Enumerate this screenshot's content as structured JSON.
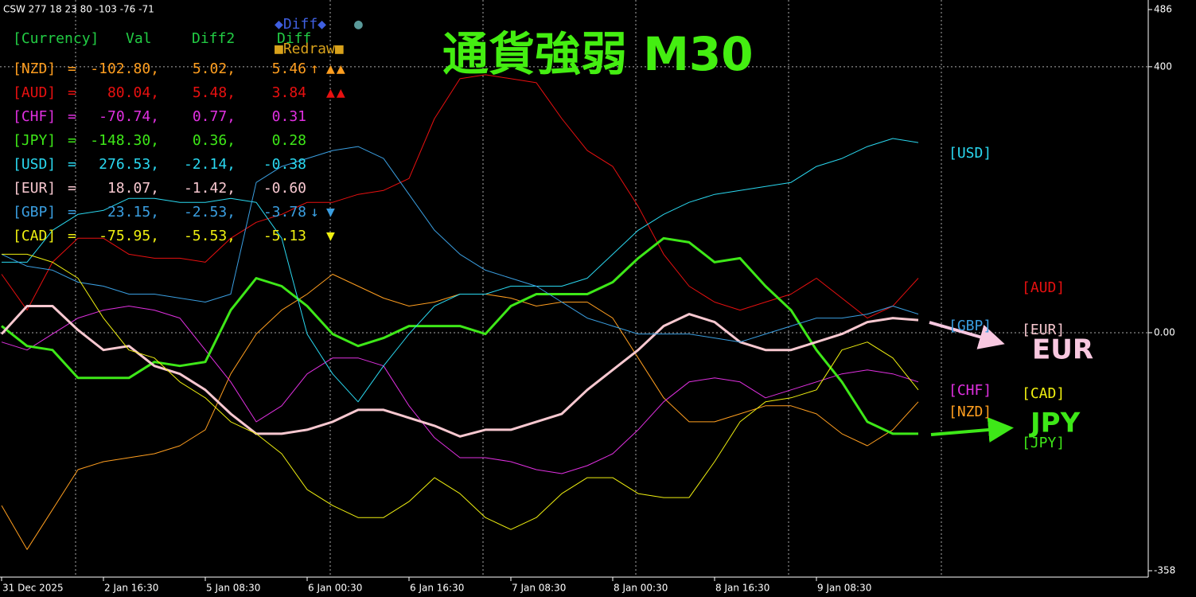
{
  "chart_data": {
    "type": "line",
    "title": "通貨強弱 M30",
    "info": "CSW 277 18 23 80 -103 -76 -71",
    "categories": [
      "31 Dec 2025",
      null,
      null,
      null,
      "2 Jan 16:30",
      null,
      null,
      null,
      "5 Jan 08:30",
      null,
      null,
      null,
      "6 Jan 00:30",
      null,
      null,
      null,
      "6 Jan 16:30",
      null,
      null,
      null,
      "7 Jan 08:30",
      null,
      null,
      null,
      "8 Jan 00:30",
      null,
      null,
      null,
      "8 Jan 16:30",
      null,
      null,
      null,
      "9 Jan 08:30",
      null,
      null,
      null,
      null
    ],
    "ylim": [
      -358,
      486
    ],
    "yticks": [
      486,
      400,
      {
        "value": 0,
        "label": "0.00"
      },
      -358
    ],
    "grid": true,
    "series": [
      {
        "name": "[NZD]",
        "color": "#ff9e1f",
        "linewidth": 1,
        "values": [
          -260,
          -326,
          -266,
          -206,
          -194,
          -188,
          -182,
          -170,
          -146,
          -62,
          -2,
          34,
          58,
          88,
          70,
          52,
          40,
          46,
          58,
          58,
          52,
          40,
          46,
          46,
          22,
          -38,
          -98,
          -134,
          -134,
          -122,
          -110,
          -110,
          -122,
          -152,
          -170,
          -146,
          -104
        ]
      },
      {
        "name": "[AUD]",
        "color": "#e81010",
        "linewidth": 1,
        "values": [
          88,
          34,
          106,
          142,
          142,
          118,
          112,
          112,
          106,
          142,
          166,
          178,
          196,
          196,
          208,
          214,
          232,
          322,
          382,
          388,
          382,
          376,
          322,
          274,
          250,
          190,
          118,
          70,
          46,
          34,
          46,
          58,
          82,
          52,
          22,
          40,
          82
        ]
      },
      {
        "name": "[CHF]",
        "color": "#e030e0",
        "linewidth": 1,
        "values": [
          -14,
          -26,
          -2,
          22,
          34,
          40,
          34,
          22,
          -26,
          -74,
          -134,
          -110,
          -62,
          -38,
          -38,
          -50,
          -110,
          -158,
          -188,
          -188,
          -194,
          -206,
          -212,
          -200,
          -182,
          -146,
          -104,
          -74,
          -68,
          -74,
          -98,
          -86,
          -74,
          -62,
          -56,
          -62,
          -74
        ]
      },
      {
        "name": "[JPY]",
        "color": "#3ee818",
        "linewidth": 3,
        "values": [
          10,
          -20,
          -26,
          -68,
          -68,
          -68,
          -44,
          -50,
          -44,
          34,
          82,
          70,
          40,
          -2,
          -20,
          -8,
          10,
          10,
          10,
          -2,
          40,
          58,
          58,
          58,
          76,
          112,
          142,
          136,
          106,
          112,
          70,
          34,
          -26,
          -74,
          -134,
          -152,
          -152
        ]
      },
      {
        "name": "[USD]",
        "color": "#2ad8f0",
        "linewidth": 1,
        "values": [
          106,
          106,
          154,
          178,
          184,
          202,
          202,
          196,
          196,
          202,
          196,
          142,
          -2,
          -62,
          -104,
          -50,
          -2,
          40,
          58,
          58,
          70,
          70,
          70,
          82,
          118,
          154,
          178,
          196,
          208,
          214,
          220,
          226,
          250,
          262,
          280,
          292,
          286
        ]
      },
      {
        "name": "[EUR]",
        "color": "#f8c8d0",
        "linewidth": 3,
        "values": [
          -2,
          40,
          40,
          4,
          -26,
          -20,
          -50,
          -62,
          -86,
          -122,
          -152,
          -152,
          -146,
          -134,
          -116,
          -116,
          -128,
          -140,
          -156,
          -146,
          -146,
          -134,
          -122,
          -86,
          -56,
          -26,
          10,
          28,
          16,
          -14,
          -26,
          -26,
          -14,
          -2,
          16,
          22,
          19
        ]
      },
      {
        "name": "[GBP]",
        "color": "#3a9ee0",
        "linewidth": 1,
        "values": [
          118,
          100,
          94,
          76,
          70,
          58,
          58,
          52,
          46,
          58,
          226,
          250,
          262,
          274,
          280,
          262,
          208,
          154,
          118,
          94,
          82,
          70,
          46,
          22,
          10,
          -2,
          -2,
          -2,
          -8,
          -14,
          -2,
          10,
          22,
          22,
          28,
          40,
          28
        ]
      },
      {
        "name": "[CAD]",
        "color": "#f0f010",
        "linewidth": 1,
        "values": [
          118,
          118,
          106,
          82,
          22,
          -26,
          -38,
          -74,
          -98,
          -134,
          -152,
          -182,
          -236,
          -260,
          -278,
          -278,
          -254,
          -218,
          -242,
          -278,
          -296,
          -278,
          -242,
          -218,
          -218,
          -242,
          -248,
          -248,
          -194,
          -134,
          -104,
          -98,
          -86,
          -26,
          -14,
          -38,
          -86
        ]
      }
    ],
    "annotations": [
      {
        "text": "EUR",
        "color": "#f8c8e0"
      },
      {
        "text": "JPY",
        "color": "#3ee818"
      }
    ]
  },
  "panel": {
    "header": [
      "[Currency]",
      "Val",
      "Diff2",
      "Diff"
    ],
    "header_color": "#22cc44",
    "rows": [
      {
        "currency": "[NZD]",
        "eq": "=",
        "val": "-102.80,",
        "diff2": "5.02,",
        "diff": "5.46",
        "arrow": "↑",
        "signal": "▲▲",
        "color": "#ff9e1f"
      },
      {
        "currency": "[AUD]",
        "eq": "=",
        "val": "80.04,",
        "diff2": "5.48,",
        "diff": "3.84",
        "arrow": "",
        "signal": "▲▲",
        "color": "#e81010"
      },
      {
        "currency": "[CHF]",
        "eq": "=",
        "val": "-70.74,",
        "diff2": "0.77,",
        "diff": "0.31",
        "arrow": "",
        "signal": "",
        "color": "#e030e0"
      },
      {
        "currency": "[JPY]",
        "eq": "=",
        "val": "-148.30,",
        "diff2": "0.36,",
        "diff": "0.28",
        "arrow": "",
        "signal": "",
        "color": "#3ee818"
      },
      {
        "currency": "[USD]",
        "eq": "=",
        "val": "276.53,",
        "diff2": "-2.14,",
        "diff": "-0.38",
        "arrow": "",
        "signal": "",
        "color": "#2ad8f0"
      },
      {
        "currency": "[EUR]",
        "eq": "=",
        "val": "18.07,",
        "diff2": "-1.42,",
        "diff": "-0.60",
        "arrow": "",
        "signal": "",
        "color": "#f8c8d0"
      },
      {
        "currency": "[GBP]",
        "eq": "=",
        "val": "23.15,",
        "diff2": "-2.53,",
        "diff": "-3.78",
        "arrow": "↓",
        "signal": "▼",
        "color": "#3a9ee0"
      },
      {
        "currency": "[CAD]",
        "eq": "=",
        "val": "-75.95,",
        "diff2": "-5.53,",
        "diff": "-5.13",
        "arrow": "",
        "signal": "▼",
        "color": "#f0f010"
      }
    ],
    "buttons": [
      {
        "label": "◆Diff◆",
        "color": "#3f5fe0"
      },
      {
        "label": "●",
        "color": "#5a9a9a"
      },
      {
        "label": "■Redraw■",
        "color": "#d9a21b"
      }
    ]
  }
}
